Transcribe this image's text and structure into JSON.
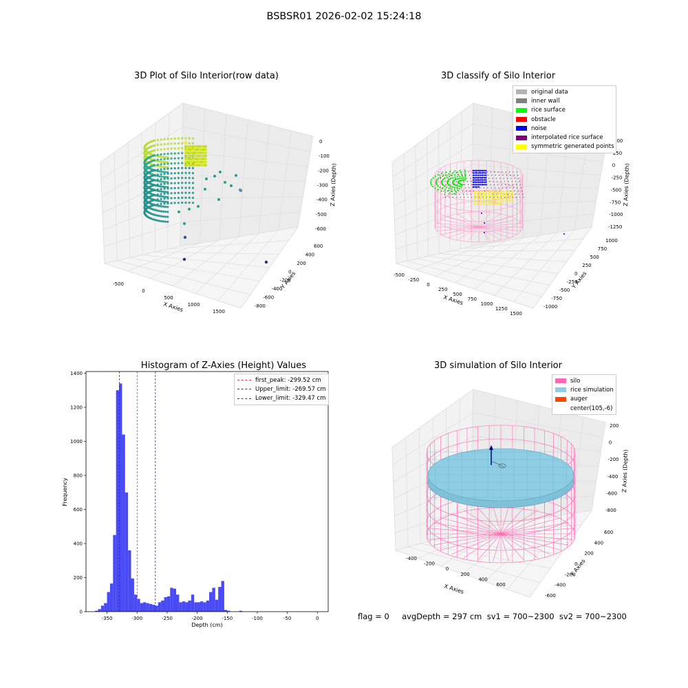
{
  "suptitle": "BSBSR01 2026-02-02 15:24:18",
  "chart_data": [
    {
      "type": "scatter",
      "title": "3D Plot of Silo Interior(row data)",
      "xlabel": "X Axies",
      "ylabel": "Y Axies",
      "zlabel": "Z Axies (Depth)",
      "x_ticks": [
        "-500",
        "0",
        "500",
        "1000",
        "1500"
      ],
      "y_ticks": [
        "-800",
        "-600",
        "-400",
        "-200",
        "0",
        "200",
        "400",
        "600"
      ],
      "z_ticks": [
        "0",
        "-100",
        "-200",
        "-300",
        "-400",
        "-500",
        "-600"
      ],
      "colormap": "viridis"
    },
    {
      "type": "scatter",
      "title": "3D classify of Silo Interior",
      "xlabel": "X Axies",
      "ylabel": "Y Axies",
      "zlabel": "Z Axies (Depth)",
      "x_ticks": [
        "-500",
        "-250",
        "0",
        "250",
        "500",
        "750",
        "1000",
        "1250",
        "1500"
      ],
      "y_ticks": [
        "-1000",
        "-750",
        "-500",
        "-250",
        "0",
        "250",
        "500",
        "750",
        "1000"
      ],
      "z_ticks": [
        "500",
        "250",
        "0",
        "-250",
        "-500",
        "-750",
        "-1000",
        "-1250"
      ],
      "z_tick_partial": "00",
      "legend": [
        {
          "label": "original data",
          "color": "#b3b3b3"
        },
        {
          "label": "inner wall",
          "color": "#808080"
        },
        {
          "label": "rice surface",
          "color": "#00ff00"
        },
        {
          "label": "obstacle",
          "color": "#ff0000"
        },
        {
          "label": "noise",
          "color": "#0000ff"
        },
        {
          "label": "interpolated rice surface",
          "color": "#800080"
        },
        {
          "label": "symmetric generated points",
          "color": "#ffff00"
        }
      ],
      "legend_position": "top-right"
    },
    {
      "type": "bar",
      "title": "Histogram of Z-Axies (Height) Values",
      "xlabel": "Depth (cm)",
      "ylabel": "Frequency",
      "xlim": [
        -385,
        18
      ],
      "ylim": [
        0,
        1410
      ],
      "x_ticks": [
        -350,
        -300,
        -250,
        -200,
        -150,
        -100,
        -50,
        0
      ],
      "y_ticks": [
        0,
        200,
        400,
        600,
        800,
        1000,
        1200,
        1400
      ],
      "bin_start": -370,
      "bin_width": 5,
      "counts": [
        5,
        15,
        35,
        50,
        115,
        165,
        450,
        1300,
        1340,
        1040,
        700,
        360,
        195,
        100,
        75,
        50,
        55,
        50,
        45,
        40,
        35,
        55,
        65,
        85,
        90,
        140,
        135,
        100,
        55,
        60,
        55,
        65,
        100,
        55,
        55,
        60,
        55,
        65,
        115,
        140,
        70,
        145,
        180,
        10,
        5,
        0,
        0,
        0,
        5,
        0
      ],
      "bar_color": "#4a4af5",
      "vlines": [
        {
          "x": -299.52,
          "color": "#e83030",
          "label": "first_peak: -299.52 cm"
        },
        {
          "x": -269.57,
          "color": "#2a2ac8",
          "label": "Upper_limit: -269.57 cm"
        },
        {
          "x": -329.47,
          "color": "#2a2ac8",
          "label": "Lower_limit: -329.47 cm"
        }
      ],
      "legend_position": "top-right"
    },
    {
      "type": "scatter",
      "title": "3D simulation of Silo Interior",
      "xlabel": "X Axies",
      "ylabel": "Y Axies",
      "zlabel": "Z Axies (Depth)",
      "x_ticks": [
        "-400",
        "-200",
        "0",
        "200",
        "400",
        "600"
      ],
      "y_ticks": [
        "-600",
        "-400",
        "-200",
        "0",
        "200",
        "400",
        "600"
      ],
      "z_ticks": [
        "200",
        "0",
        "-200",
        "-400",
        "-600",
        "-800"
      ],
      "legend": [
        {
          "label": "silo",
          "color": "#ff69b4"
        },
        {
          "label": "rice simulation",
          "color": "#87ceeb"
        },
        {
          "label": "auger",
          "color": "#ff4500"
        },
        {
          "label": "center(105,-6)",
          "color": "#ffffff"
        }
      ],
      "legend_position": "top-right"
    }
  ],
  "status_line": "flag = 0     avgDepth = 297 cm  sv1 = 700~2300  sv2 = 700~2300"
}
